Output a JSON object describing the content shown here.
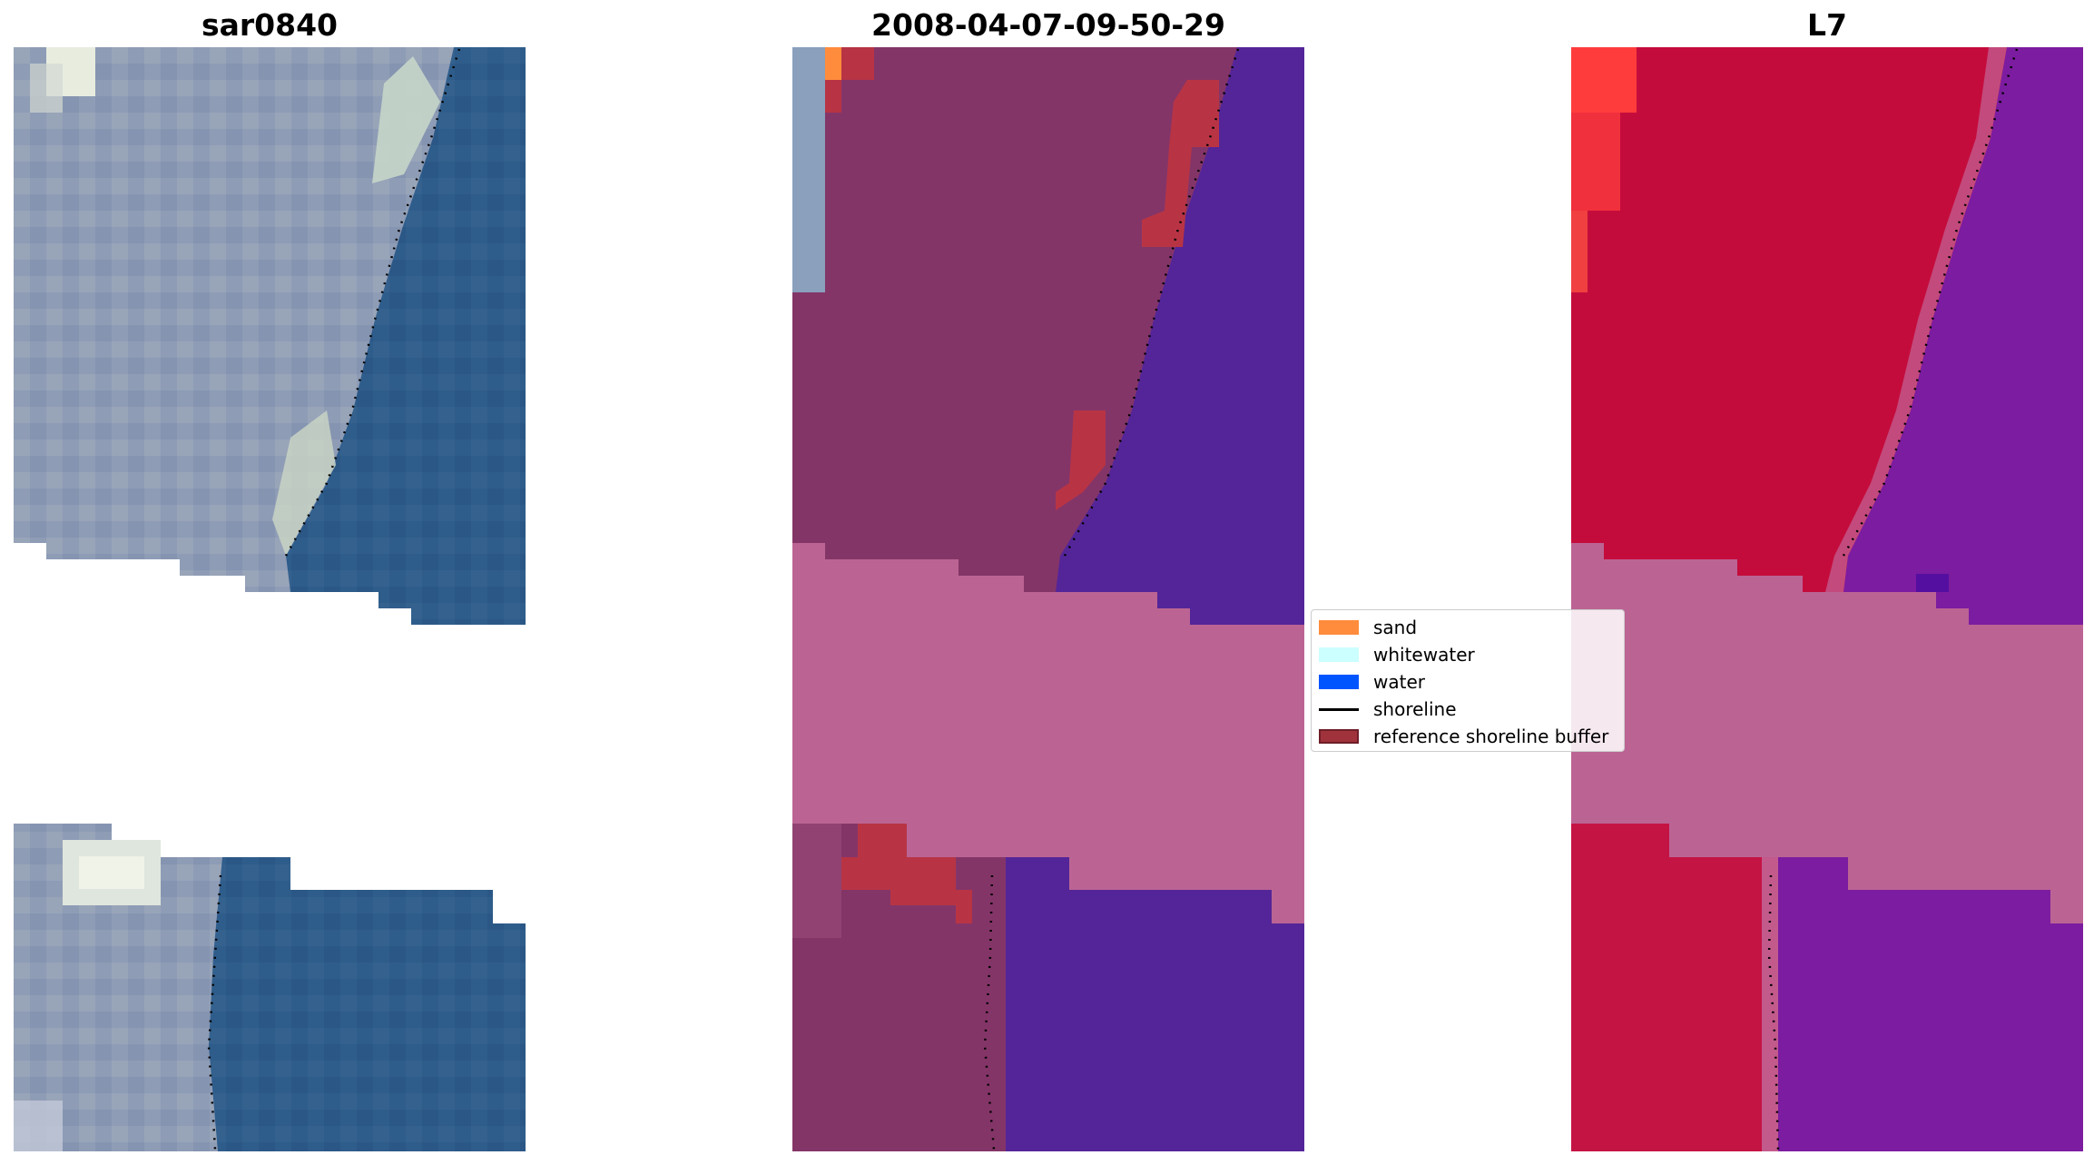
{
  "panels": [
    {
      "title": "sar0840"
    },
    {
      "title": "2008-04-07-09-50-29"
    },
    {
      "title": "L7"
    }
  ],
  "legend": {
    "items": [
      {
        "label": "sand",
        "kind": "patch",
        "color": "#ff8c3c",
        "edge": "#ff8c3c"
      },
      {
        "label": "whitewater",
        "kind": "patch",
        "color": "#ccffff",
        "edge": "#ccffff"
      },
      {
        "label": "water",
        "kind": "patch",
        "color": "#0055ff",
        "edge": "#0055ff"
      },
      {
        "label": "shoreline",
        "kind": "line",
        "color": "#000000"
      },
      {
        "label": "reference shoreline buffer",
        "kind": "patch",
        "color": "#a0323c",
        "edge": "#6e1e28"
      }
    ]
  },
  "colors": {
    "rgb_land": "#8e9cb6",
    "rgb_water": "#2f5d8b",
    "class_land": "#843568",
    "class_water": "#542598",
    "class_nodata": "#bb6494",
    "class_buffer": "#b83444",
    "class_sand": "#ff8c3c",
    "ndwi_land": "#c40c3c",
    "ndwi_water": "#7c1ca0",
    "ndwi_nodata": "#bb6494",
    "ndwi_sand": "#ff3c3c"
  }
}
